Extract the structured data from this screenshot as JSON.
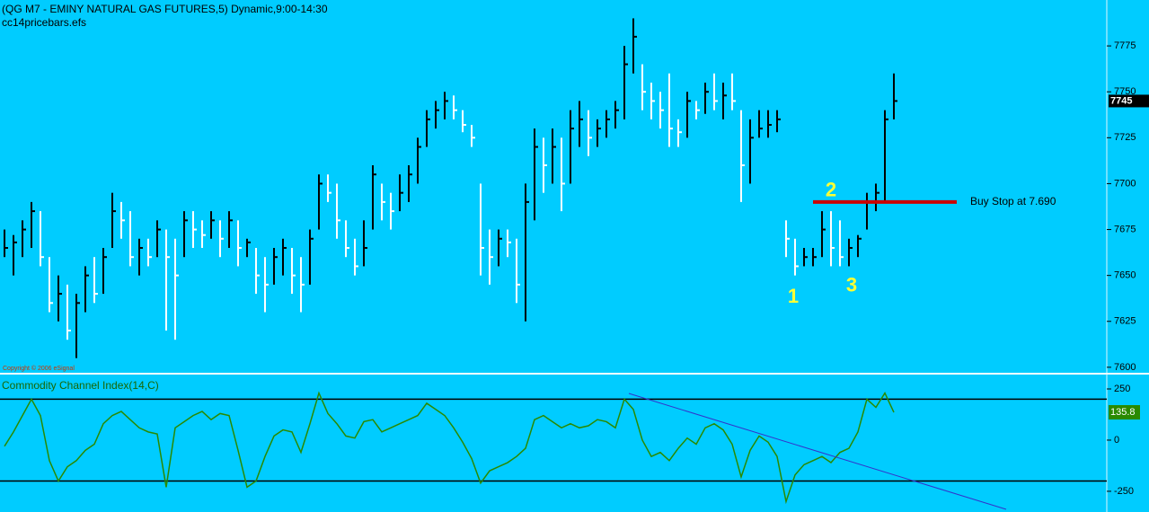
{
  "chart_data": [
    {
      "type": "ohlc",
      "title": "(QG M7 - EMINY NATURAL GAS FUTURES,5) Dynamic,9:00-14:30",
      "subtitle": "cc14pricebars.efs",
      "copyright": "Copyright © 2006 eSignal",
      "up_color": "#000000",
      "down_color": "#ffffff",
      "xlim": [
        -0.5,
        122.7
      ],
      "ylim": [
        7597,
        7800
      ],
      "yticks": [
        7600,
        7625,
        7650,
        7675,
        7700,
        7725,
        7750,
        7775
      ],
      "highs": [
        7675,
        7672,
        7680,
        7690,
        7685,
        7660,
        7650,
        7645,
        7640,
        7655,
        7660,
        7665,
        7695,
        7690,
        7685,
        7670,
        7670,
        7680,
        7675,
        7670,
        7685,
        7685,
        7680,
        7685,
        7680,
        7685,
        7680,
        7670,
        7665,
        7660,
        7665,
        7670,
        7665,
        7660,
        7675,
        7705,
        7705,
        7700,
        7680,
        7670,
        7680,
        7710,
        7700,
        7695,
        7705,
        7710,
        7725,
        7740,
        7745,
        7750,
        7748,
        7740,
        7732,
        7700,
        7675,
        7675,
        7675,
        7670,
        7700,
        7730,
        7725,
        7730,
        7725,
        7740,
        7745,
        7740,
        7735,
        7740,
        7745,
        7775,
        7790,
        7765,
        7755,
        7750,
        7760,
        7735,
        7750,
        7745,
        7755,
        7760,
        7755,
        7760,
        7740,
        7735,
        7740,
        7740,
        7740,
        7680,
        7670,
        7665,
        7665,
        7685,
        7685,
        7680,
        7670,
        7672,
        7695,
        7700,
        7740,
        7760
      ],
      "lows": [
        7660,
        7650,
        7660,
        7665,
        7655,
        7630,
        7625,
        7615,
        7605,
        7630,
        7635,
        7640,
        7665,
        7670,
        7655,
        7650,
        7655,
        7660,
        7620,
        7615,
        7660,
        7665,
        7665,
        7670,
        7660,
        7665,
        7655,
        7660,
        7640,
        7630,
        7645,
        7650,
        7640,
        7630,
        7645,
        7675,
        7690,
        7670,
        7660,
        7650,
        7655,
        7675,
        7680,
        7675,
        7685,
        7690,
        7700,
        7720,
        7730,
        7735,
        7735,
        7728,
        7720,
        7650,
        7645,
        7655,
        7660,
        7635,
        7625,
        7680,
        7695,
        7700,
        7685,
        7700,
        7720,
        7715,
        7720,
        7725,
        7730,
        7735,
        7760,
        7740,
        7735,
        7730,
        7720,
        7720,
        7725,
        7735,
        7738,
        7740,
        7735,
        7740,
        7690,
        7700,
        7725,
        7725,
        7728,
        7660,
        7650,
        7655,
        7655,
        7660,
        7655,
        7655,
        7655,
        7660,
        7675,
        7685,
        7690,
        7735
      ],
      "closes": [
        7665,
        7668,
        7675,
        7685,
        7660,
        7635,
        7640,
        7620,
        7635,
        7650,
        7640,
        7660,
        7685,
        7680,
        7660,
        7665,
        7660,
        7675,
        7660,
        7650,
        7680,
        7675,
        7672,
        7680,
        7670,
        7680,
        7665,
        7668,
        7650,
        7645,
        7660,
        7665,
        7650,
        7645,
        7670,
        7700,
        7695,
        7680,
        7665,
        7655,
        7665,
        7705,
        7690,
        7685,
        7695,
        7705,
        7720,
        7735,
        7740,
        7745,
        7740,
        7732,
        7725,
        7665,
        7660,
        7670,
        7668,
        7645,
        7690,
        7720,
        7710,
        7720,
        7700,
        7730,
        7735,
        7725,
        7730,
        7735,
        7740,
        7765,
        7780,
        7750,
        7745,
        7740,
        7730,
        7728,
        7745,
        7740,
        7750,
        7745,
        7748,
        7745,
        7710,
        7725,
        7730,
        7732,
        7735,
        7670,
        7655,
        7660,
        7660,
        7675,
        7665,
        7660,
        7665,
        7670,
        7690,
        7695,
        7735,
        7745
      ],
      "buy_stop": {
        "value": 7690,
        "label": "Buy Stop at 7.690",
        "x": [
          90,
          106
        ],
        "color": "#cc0000",
        "text_x": 107.5
      },
      "labels": [
        {
          "text": "1",
          "x": 87.8,
          "y": 7638
        },
        {
          "text": "2",
          "x": 92,
          "y": 7696
        },
        {
          "text": "3",
          "x": 94.3,
          "y": 7644
        }
      ],
      "label_color": "#ffff33"
    },
    {
      "type": "line",
      "title": "Commodity Channel Index(14,C)",
      "color": "#2a8a00",
      "xlim": [
        -0.5,
        122.7
      ],
      "ylim": [
        -338,
        307
      ],
      "yticks": [
        250,
        0,
        -250
      ],
      "levels": [
        200,
        -200
      ],
      "values": [
        -30,
        40,
        120,
        200,
        120,
        -100,
        -200,
        -130,
        -100,
        -50,
        -20,
        80,
        120,
        140,
        100,
        60,
        40,
        30,
        -230,
        60,
        90,
        120,
        140,
        100,
        130,
        120,
        -50,
        -230,
        -200,
        -80,
        20,
        50,
        40,
        -60,
        80,
        230,
        130,
        80,
        20,
        10,
        90,
        100,
        40,
        60,
        80,
        100,
        120,
        180,
        150,
        120,
        60,
        -10,
        -90,
        -210,
        -150,
        -130,
        -110,
        -80,
        -40,
        100,
        120,
        90,
        60,
        80,
        60,
        70,
        100,
        90,
        60,
        200,
        150,
        0,
        -80,
        -60,
        -100,
        -40,
        10,
        -20,
        60,
        80,
        50,
        -20,
        -180,
        -50,
        20,
        -10,
        -80,
        -300,
        -170,
        -120,
        -100,
        -80,
        -110,
        -60,
        -40,
        40,
        200,
        160,
        230,
        135.8
      ],
      "value_box_color": "#2a8a00",
      "trendline": {
        "x": [
          69.5,
          111.5
        ],
        "y": [
          228,
          -338
        ],
        "color": "#3333cc"
      }
    }
  ]
}
